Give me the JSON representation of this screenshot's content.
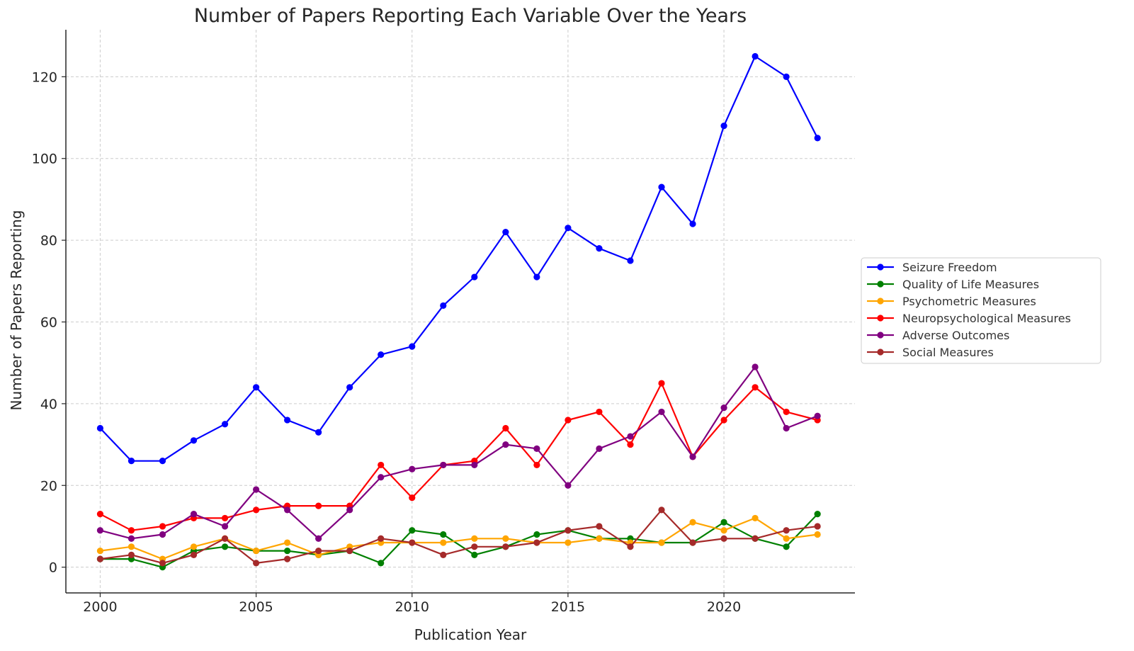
{
  "chart_data": {
    "type": "line",
    "title": "Number of Papers Reporting Each Variable Over the Years",
    "xlabel": "Publication Year",
    "ylabel": "Number of Papers Reporting",
    "xlim": [
      1998.9,
      2024.2
    ],
    "ylim": [
      -6.3,
      131.5
    ],
    "xticks": [
      2000,
      2005,
      2010,
      2015,
      2020
    ],
    "yticks": [
      0,
      20,
      40,
      60,
      80,
      100,
      120
    ],
    "grid": true,
    "legend_position": "center-right, outside plot",
    "x": [
      2000,
      2001,
      2002,
      2003,
      2004,
      2005,
      2006,
      2007,
      2008,
      2009,
      2010,
      2011,
      2012,
      2013,
      2014,
      2015,
      2016,
      2017,
      2018,
      2019,
      2020,
      2021,
      2022,
      2023
    ],
    "series": [
      {
        "name": "Seizure Freedom",
        "color": "#0000ff",
        "values": [
          34,
          26,
          26,
          31,
          35,
          44,
          36,
          33,
          44,
          52,
          54,
          64,
          71,
          82,
          71,
          83,
          78,
          75,
          93,
          84,
          108,
          125,
          120,
          105
        ]
      },
      {
        "name": "Quality of Life Measures",
        "color": "#008000",
        "values": [
          2,
          2,
          0,
          4,
          5,
          4,
          4,
          3,
          4,
          1,
          9,
          8,
          3,
          5,
          8,
          9,
          7,
          7,
          6,
          6,
          11,
          7,
          5,
          13
        ]
      },
      {
        "name": "Psychometric Measures",
        "color": "#ffa500",
        "values": [
          4,
          5,
          2,
          5,
          7,
          4,
          6,
          3,
          5,
          6,
          6,
          6,
          7,
          7,
          6,
          6,
          7,
          6,
          6,
          11,
          9,
          12,
          7,
          8
        ]
      },
      {
        "name": "Neuropsychological Measures",
        "color": "#ff0000",
        "values": [
          13,
          9,
          10,
          12,
          12,
          14,
          15,
          15,
          15,
          25,
          17,
          25,
          26,
          34,
          25,
          36,
          38,
          30,
          45,
          27,
          36,
          44,
          38,
          36
        ]
      },
      {
        "name": "Adverse Outcomes",
        "color": "#800080",
        "values": [
          9,
          7,
          8,
          13,
          10,
          19,
          14,
          7,
          14,
          22,
          24,
          25,
          25,
          30,
          29,
          20,
          29,
          32,
          38,
          27,
          39,
          49,
          34,
          37
        ]
      },
      {
        "name": "Social Measures",
        "color": "#a52a2a",
        "values": [
          2,
          3,
          1,
          3,
          7,
          1,
          2,
          4,
          4,
          7,
          6,
          3,
          5,
          5,
          6,
          9,
          10,
          5,
          14,
          6,
          7,
          7,
          9,
          10
        ]
      }
    ]
  }
}
